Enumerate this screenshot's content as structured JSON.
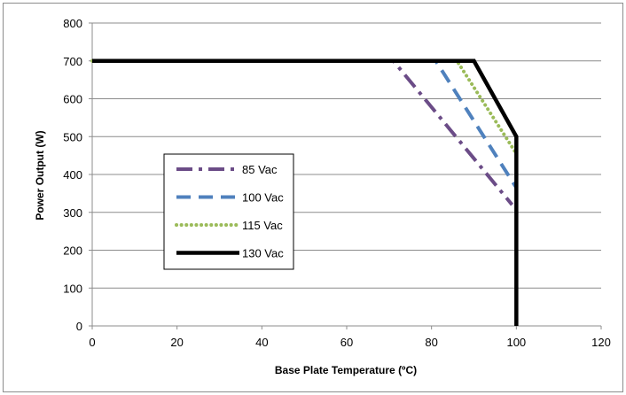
{
  "chart_data": {
    "type": "line",
    "xlabel": "Base Plate Temperature (ºC)",
    "ylabel": "Power Output (W)",
    "xlim": [
      0,
      120
    ],
    "ylim": [
      0,
      800
    ],
    "x_ticks": [
      0,
      20,
      40,
      60,
      80,
      100,
      120
    ],
    "y_ticks": [
      0,
      100,
      200,
      300,
      400,
      500,
      600,
      700,
      800
    ],
    "grid": "horizontal",
    "legend_position": "left",
    "series": [
      {
        "name": "85 Vac",
        "color": "#6b4c87",
        "style": "dash-dot",
        "points": [
          [
            0,
            700
          ],
          [
            71,
            700
          ],
          [
            99,
            320
          ]
        ]
      },
      {
        "name": "100 Vac",
        "color": "#4f81bd",
        "style": "dashed",
        "points": [
          [
            0,
            700
          ],
          [
            81,
            700
          ],
          [
            100,
            365
          ]
        ]
      },
      {
        "name": "115 Vac",
        "color": "#9bbb59",
        "style": "dotted",
        "points": [
          [
            0,
            700
          ],
          [
            86,
            700
          ],
          [
            100,
            455
          ]
        ]
      },
      {
        "name": "130 Vac",
        "color": "#000000",
        "style": "solid",
        "points": [
          [
            0,
            700
          ],
          [
            90,
            700
          ],
          [
            100,
            500
          ],
          [
            100,
            0
          ]
        ]
      }
    ]
  }
}
